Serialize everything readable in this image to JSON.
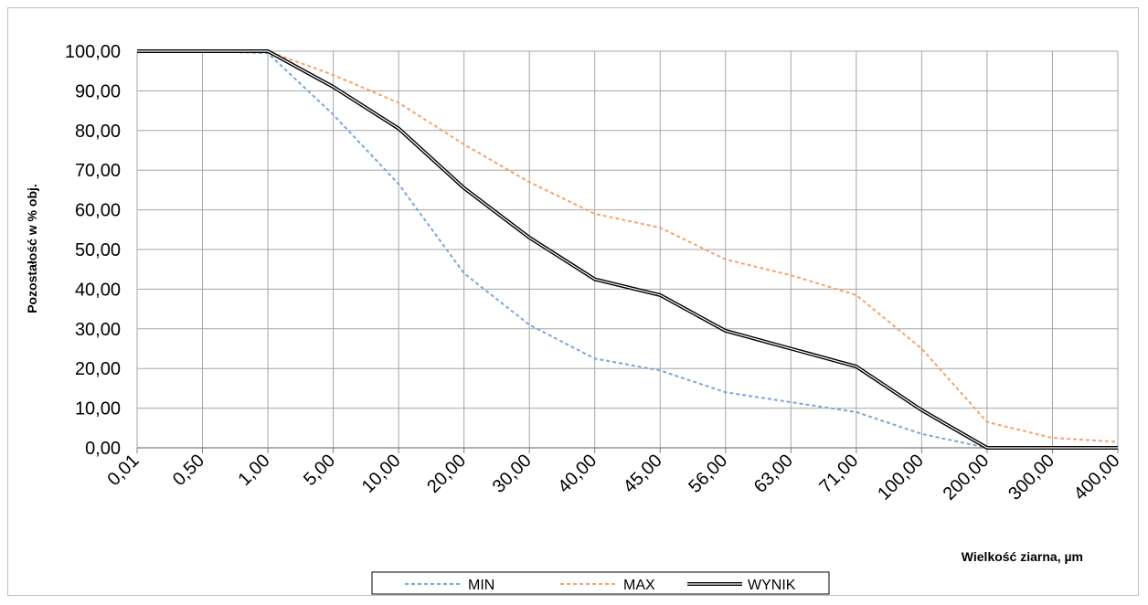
{
  "chart_data": {
    "type": "line",
    "title": "",
    "xlabel": "Wielkość ziarna,  µm",
    "ylabel": "Pozostałość w % obj.",
    "x_categories": [
      "0,01",
      "0,50",
      "1,00",
      "5,00",
      "10,00",
      "20,00",
      "30,00",
      "40,00",
      "45,00",
      "56,00",
      "63,00",
      "71,00",
      "100,00",
      "200,00",
      "300,00",
      "400,00"
    ],
    "y_ticks": [
      "0,00",
      "10,00",
      "20,00",
      "30,00",
      "40,00",
      "50,00",
      "60,00",
      "70,00",
      "80,00",
      "90,00",
      "100,00"
    ],
    "ylim": [
      0,
      100
    ],
    "grid": true,
    "legend_position": "bottom",
    "series": [
      {
        "name": "MIN",
        "color": "#7ea6d6",
        "style": "dashed",
        "values": [
          100,
          100,
          99.5,
          84,
          66.5,
          44,
          31,
          22.5,
          19.5,
          14,
          11.5,
          9,
          3.5,
          0,
          0,
          0
        ]
      },
      {
        "name": "MAX",
        "color": "#f4a46e",
        "style": "dashed",
        "values": [
          100,
          100,
          100,
          94,
          87,
          76.5,
          67,
          59,
          55.5,
          47.5,
          43.5,
          38.5,
          25,
          6.5,
          2.5,
          1.5
        ]
      },
      {
        "name": "WYNIK",
        "color": "#000000",
        "style": "double",
        "values": [
          100,
          100,
          100,
          91,
          80.5,
          65.5,
          53,
          42.5,
          38.5,
          29.5,
          25,
          20.5,
          9.5,
          0,
          0,
          0
        ]
      }
    ]
  }
}
